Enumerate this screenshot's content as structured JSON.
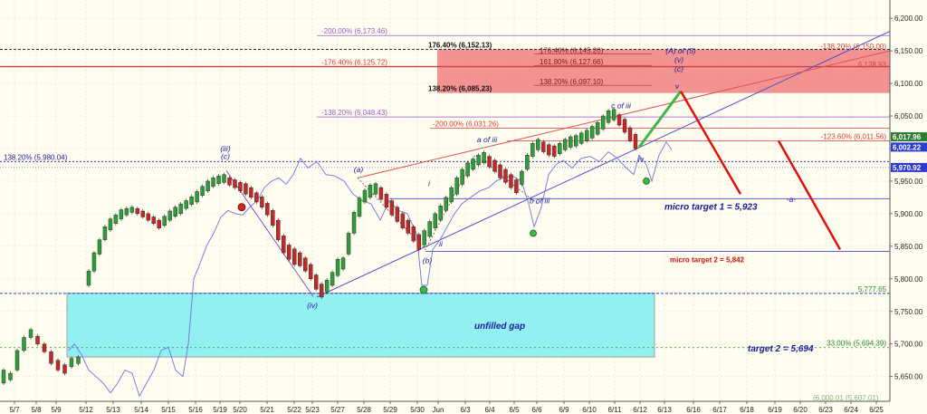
{
  "chart_data": {
    "type": "candlestick",
    "y_axis": {
      "ylim": [
        5612,
        6228
      ],
      "tick_labels": [
        "6,200.00",
        "6,150.00",
        "6,100.00",
        "6,050.00",
        "6,000.00",
        "5,950.00",
        "5,900.00",
        "5,850.00",
        "5,800.00",
        "5,750.00",
        "5,700.00",
        "5,650.00"
      ],
      "tick_values": [
        6200,
        6150,
        6100,
        6050,
        6000,
        5950,
        5900,
        5850,
        5800,
        5750,
        5700,
        5650
      ]
    },
    "x_axis": {
      "tick_labels": [
        "5/7",
        "5/8",
        "5/9",
        "5/12",
        "5/13",
        "5/14",
        "5/15",
        "5/16",
        "5/19",
        "5/20",
        "5/21",
        "5/22",
        "5/23",
        "5/27",
        "5/28",
        "5/29",
        "5/30",
        "Jun",
        "6/3",
        "6/4",
        "6/5",
        "6/6",
        "6/9",
        "6/10",
        "6/11",
        "6/12",
        "6/13",
        "6/16",
        "6/17",
        "6/18",
        "6/19",
        "6/20",
        "6/23",
        "6/24",
        "6/25"
      ]
    },
    "price_series_bars": [
      [
        5640,
        5660
      ],
      [
        5645,
        5655
      ],
      [
        5660,
        5690
      ],
      [
        5690,
        5710
      ],
      [
        5710,
        5722
      ],
      [
        5700,
        5712
      ],
      [
        5688,
        5700
      ],
      [
        5670,
        5688
      ],
      [
        5660,
        5675
      ],
      [
        5655,
        5668
      ],
      [
        5665,
        5678
      ],
      [
        5670,
        5680
      ],
      [
        5790,
        5812
      ],
      [
        5812,
        5840
      ],
      [
        5838,
        5860
      ],
      [
        5860,
        5880
      ],
      [
        5875,
        5892
      ],
      [
        5885,
        5898
      ],
      [
        5892,
        5906
      ],
      [
        5898,
        5908
      ],
      [
        5902,
        5910
      ],
      [
        5900,
        5908
      ],
      [
        5895,
        5904
      ],
      [
        5890,
        5900
      ],
      [
        5885,
        5895
      ],
      [
        5878,
        5890
      ],
      [
        5882,
        5896
      ],
      [
        5890,
        5904
      ],
      [
        5896,
        5910
      ],
      [
        5900,
        5915
      ],
      [
        5908,
        5920
      ],
      [
        5914,
        5926
      ],
      [
        5918,
        5934
      ],
      [
        5928,
        5942
      ],
      [
        5935,
        5950
      ],
      [
        5942,
        5955
      ],
      [
        5946,
        5958
      ],
      [
        5948,
        5960
      ],
      [
        5944,
        5955
      ],
      [
        5940,
        5952
      ],
      [
        5935,
        5948
      ],
      [
        5930,
        5946
      ],
      [
        5925,
        5940
      ],
      [
        5918,
        5932
      ],
      [
        5910,
        5926
      ],
      [
        5898,
        5916
      ],
      [
        5882,
        5905
      ],
      [
        5860,
        5890
      ],
      [
        5840,
        5866
      ],
      [
        5830,
        5852
      ],
      [
        5822,
        5846
      ],
      [
        5820,
        5840
      ],
      [
        5812,
        5832
      ],
      [
        5800,
        5822
      ],
      [
        5784,
        5806
      ],
      [
        5772,
        5792
      ],
      [
        5780,
        5798
      ],
      [
        5790,
        5810
      ],
      [
        5805,
        5830
      ],
      [
        5815,
        5832
      ],
      [
        5838,
        5870
      ],
      [
        5870,
        5902
      ],
      [
        5896,
        5924
      ],
      [
        5918,
        5936
      ],
      [
        5925,
        5944
      ],
      [
        5930,
        5946
      ],
      [
        5922,
        5940
      ],
      [
        5910,
        5930
      ],
      [
        5898,
        5920
      ],
      [
        5888,
        5910
      ],
      [
        5878,
        5900
      ],
      [
        5870,
        5890
      ],
      [
        5858,
        5880
      ],
      [
        5845,
        5868
      ],
      [
        5852,
        5874
      ],
      [
        5865,
        5888
      ],
      [
        5878,
        5900
      ],
      [
        5890,
        5912
      ],
      [
        5905,
        5925
      ],
      [
        5918,
        5940
      ],
      [
        5930,
        5955
      ],
      [
        5945,
        5968
      ],
      [
        5958,
        5978
      ],
      [
        5968,
        5984
      ],
      [
        5975,
        5990
      ],
      [
        5978,
        5994
      ],
      [
        5972,
        5988
      ],
      [
        5965,
        5982
      ],
      [
        5955,
        5975
      ],
      [
        5948,
        5968
      ],
      [
        5940,
        5960
      ],
      [
        5932,
        5952
      ],
      [
        5945,
        5965
      ],
      [
        5968,
        5990
      ],
      [
        5988,
        6008
      ],
      [
        5998,
        6014
      ],
      [
        5995,
        6010
      ],
      [
        5990,
        6006
      ],
      [
        5988,
        6004
      ],
      [
        5992,
        6008
      ],
      [
        5998,
        6014
      ],
      [
        6002,
        6018
      ],
      [
        6004,
        6020
      ],
      [
        6008,
        6024
      ],
      [
        6012,
        6028
      ],
      [
        6016,
        6034
      ],
      [
        6022,
        6040
      ],
      [
        6030,
        6050
      ],
      [
        6040,
        6058
      ],
      [
        6044,
        6060
      ],
      [
        6036,
        6052
      ],
      [
        6025,
        6045
      ],
      [
        6012,
        6032
      ],
      [
        6000,
        6022
      ]
    ],
    "annotations": {
      "fib_levels": [
        {
          "label": "-200.00% (6,173.46)",
          "value": 6173.46,
          "color": "#9a5cd0"
        },
        {
          "label": "176.40% (6,152.13)",
          "value": 6152.13,
          "color": "#111111"
        },
        {
          "label": "-176.40% (6,125.72)",
          "value": 6125.72,
          "color": "#d04040"
        },
        {
          "label": "138.20% (6,085.23)",
          "value": 6085.23,
          "color": "#111111"
        },
        {
          "label": "-138.20% (6,048.43)",
          "value": 6048.43,
          "color": "#9a5cd0"
        },
        {
          "label": "-200.00% (6,031.26)",
          "value": 6031.26,
          "color": "#d04040"
        },
        {
          "label": "138.20% (5,980.04)",
          "value": 5980.04,
          "color": "#1a1aa0"
        },
        {
          "label": "-138.20% (6,150.00)",
          "value": 6150.0,
          "color": "#d04040"
        },
        {
          "label": "-123.60% (6,011.56)",
          "value": 6011.56,
          "color": "#d04040"
        },
        {
          "label": "33.00% (5,694.39)",
          "value": 5694.39,
          "color": "#2a8a2a"
        }
      ],
      "zone_labels": [
        "176.40% (6,145.20)",
        "161.80% (6,127.66)",
        "138.20% (6,097.10)"
      ],
      "right_prices": [
        {
          "label": "6,128.93",
          "value": 6128.93,
          "color": "#d04040"
        },
        {
          "label": "6,017.96",
          "value": 6017.96,
          "color": "#2e7d32"
        },
        {
          "label": "6,002.22",
          "value": 6002.22,
          "color": "#2d3ccf"
        },
        {
          "label": "5,970.92",
          "value": 5970.92,
          "color": "#2d3ccf"
        },
        {
          "label": "5,777.65",
          "value": 5777.65,
          "color": "#2a8a2a"
        }
      ],
      "wave_labels": [
        "(iii)",
        "(c)",
        "(iv)",
        "(a)",
        "(b)",
        "i",
        "ii",
        "a of iii",
        "b of iii",
        "c of iii",
        "iv",
        "v",
        "(A) of (5)",
        "(v)",
        "(c)",
        "-a-"
      ],
      "targets": [
        {
          "label": "micro target 1 = 5,923",
          "value": 5923,
          "color": "#1a1aa0"
        },
        {
          "label": "micro target 2 = 5,842",
          "value": 5842,
          "color": "#d01010"
        },
        {
          "label": "target 2 = 5,694",
          "value": 5694,
          "color": "#1a1aa0"
        }
      ],
      "gap": {
        "label": "unfilled gap",
        "from": 5680,
        "to": 5778
      },
      "clipped_bottom_label": "(6,000.01 (5,607.01)"
    },
    "colors": {
      "up": "#2e9e3a",
      "down": "#c62828",
      "comparison_line": "#6f72e0",
      "gap_fill": "#7ff0f0",
      "target_zone": "#f08080",
      "projection_up": "#3cb84a",
      "projection_down": "#e01010"
    },
    "grid": true,
    "legend": "none"
  }
}
